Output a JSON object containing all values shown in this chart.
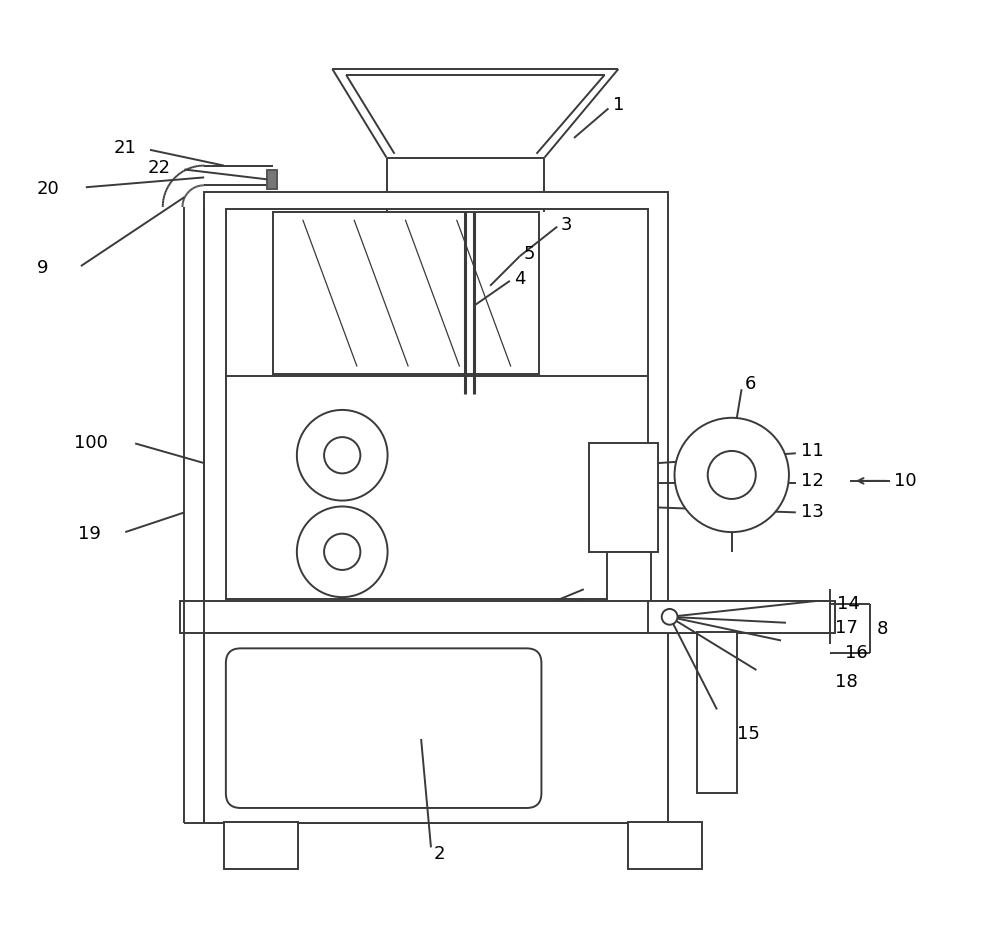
{
  "background_color": "#ffffff",
  "line_color": "#3a3a3a",
  "lw": 1.4,
  "fig_width": 10.0,
  "fig_height": 9.43
}
